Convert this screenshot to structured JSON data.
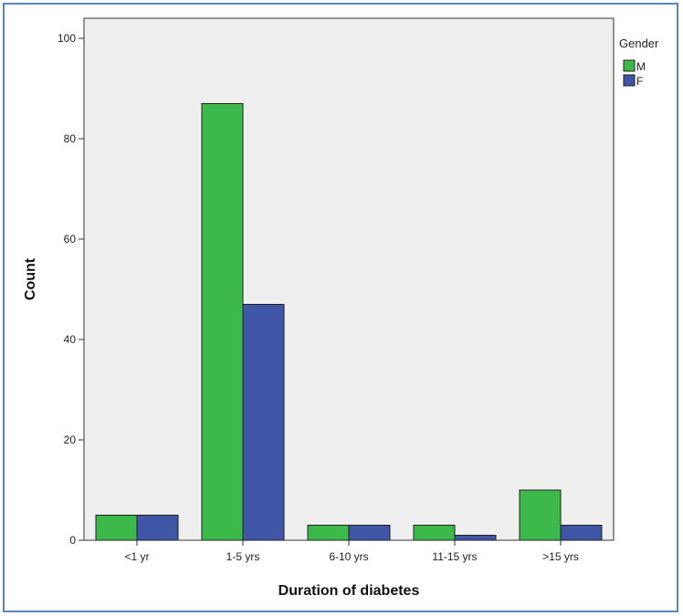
{
  "chart_data": {
    "type": "bar",
    "title": "",
    "xlabel": "Duration of diabetes",
    "ylabel": "Count",
    "categories": [
      "<1 yr",
      "1-5 yrs",
      "6-10 yrs",
      "11-15 yrs",
      ">15 yrs"
    ],
    "series": [
      {
        "name": "M",
        "values": [
          5,
          87,
          3,
          3,
          10
        ],
        "color": "#3cb94a"
      },
      {
        "name": "F",
        "values": [
          5,
          47,
          3,
          1,
          3
        ],
        "color": "#3f55a6"
      }
    ],
    "ylim": [
      0,
      104
    ],
    "yticks": [
      0,
      20,
      40,
      60,
      80,
      100
    ],
    "legend": {
      "title": "Gender",
      "placement": "top-right-outside"
    },
    "grid": false,
    "plot_background": "#efefef"
  }
}
